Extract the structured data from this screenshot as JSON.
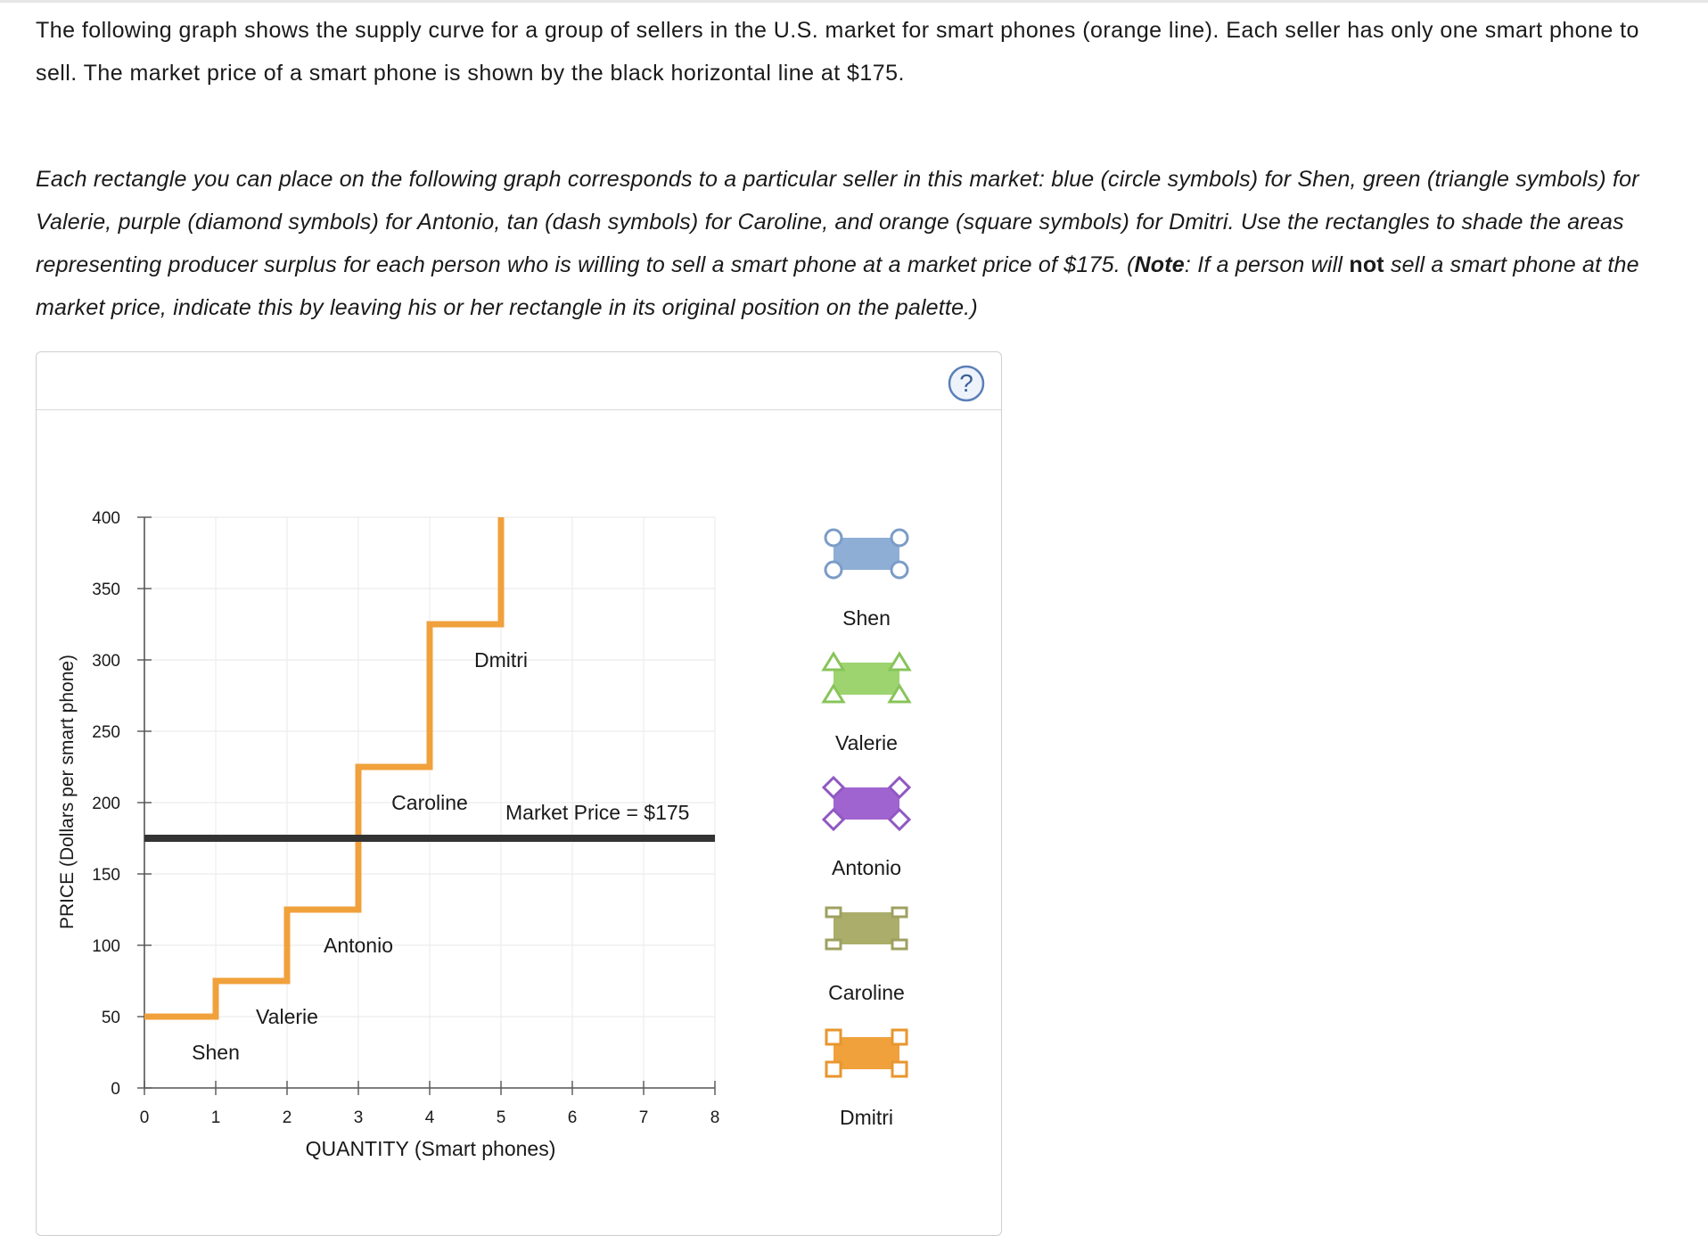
{
  "instructions": {
    "intro": "The following graph shows the supply curve for a group of sellers in the U.S. market for smart phones (orange line). Each seller has only one smart phone to sell. The market price of a smart phone is shown by the black horizontal line at $175.",
    "task_1": "Each rectangle you can place on the following graph corresponds to a particular seller in this market: blue (circle symbols) for Shen, green (triangle symbols) for Valerie, purple (diamond symbols) for Antonio, tan (dash symbols) for Caroline, and orange (square symbols) for Dmitri. Use the rectangles to shade the areas representing producer surplus for each person who is willing to sell a smart phone at a market price of $175. (",
    "note_label": "Note",
    "task_2": ": If a person will ",
    "not_label": "not",
    "task_3": " sell a smart phone at the market price, indicate this by leaving his or her rectangle in its original position on the palette.)"
  },
  "help_icon": "?",
  "chart_data": {
    "type": "line",
    "xlabel": "QUANTITY (Smart phones)",
    "ylabel": "PRICE (Dollars per smart phone)",
    "xlim": [
      0,
      8
    ],
    "ylim": [
      0,
      400
    ],
    "xticks": [
      0,
      1,
      2,
      3,
      4,
      5,
      6,
      7,
      8
    ],
    "yticks": [
      0,
      50,
      100,
      150,
      200,
      250,
      300,
      350,
      400
    ],
    "grid": true,
    "supply_curve": {
      "color": "#f0a13c",
      "points": [
        [
          0,
          50
        ],
        [
          1,
          50
        ],
        [
          1,
          75
        ],
        [
          2,
          75
        ],
        [
          2,
          125
        ],
        [
          3,
          125
        ],
        [
          3,
          225
        ],
        [
          4,
          225
        ],
        [
          4,
          325
        ],
        [
          5,
          325
        ],
        [
          5,
          400
        ]
      ]
    },
    "market_price": {
      "value": 175,
      "color": "#333333",
      "label": "Market Price = $175",
      "label_pos": [
        5.0,
        188
      ]
    },
    "seller_labels": [
      {
        "text": "Shen",
        "x": 1.0,
        "y": 20
      },
      {
        "text": "Valerie",
        "x": 2.0,
        "y": 45
      },
      {
        "text": "Antonio",
        "x": 3.0,
        "y": 95
      },
      {
        "text": "Caroline",
        "x": 4.0,
        "y": 195
      },
      {
        "text": "Dmitri",
        "x": 5.0,
        "y": 295
      }
    ]
  },
  "palette": [
    {
      "name": "Shen",
      "fill": "#8eaed6",
      "stroke": "#7b9cc7",
      "symbol": "circle"
    },
    {
      "name": "Valerie",
      "fill": "#9dd46f",
      "stroke": "#88c45a",
      "symbol": "triangle"
    },
    {
      "name": "Antonio",
      "fill": "#a064d0",
      "stroke": "#9058c2",
      "symbol": "diamond"
    },
    {
      "name": "Caroline",
      "fill": "#abae6a",
      "stroke": "#9ea060",
      "symbol": "dash"
    },
    {
      "name": "Dmitri",
      "fill": "#f0a13c",
      "stroke": "#e8962e",
      "symbol": "square"
    }
  ]
}
